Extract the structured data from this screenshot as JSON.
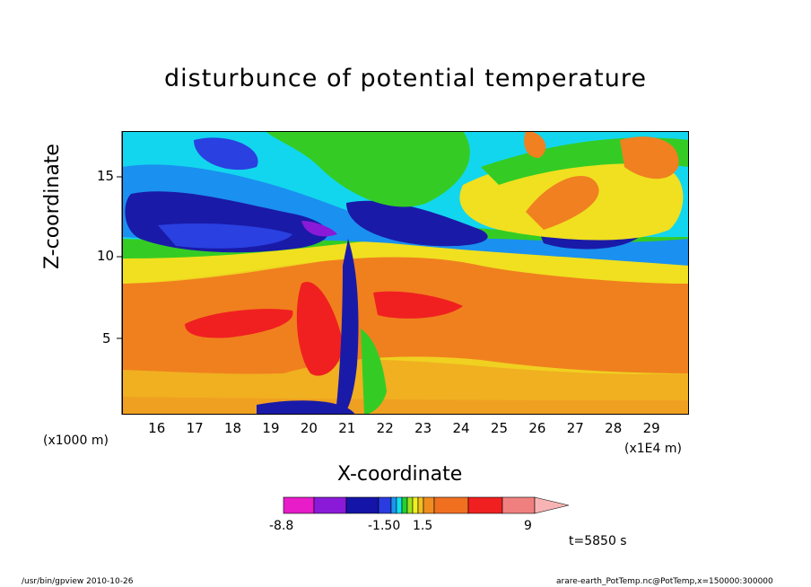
{
  "chart_data": {
    "type": "heatmap",
    "title": "disturbunce of potential temperature",
    "xlabel": "X-coordinate",
    "ylabel": "Z-coordinate",
    "x_unit_left": "(x1000 m)",
    "x_unit_right": "(x1E4 m)",
    "x_ticks": [
      "16",
      "17",
      "18",
      "19",
      "20",
      "21",
      "22",
      "23",
      "24",
      "25",
      "26",
      "27",
      "28",
      "29"
    ],
    "y_ticks": [
      "5",
      "10",
      "15"
    ],
    "xlim": [
      15.1,
      30.0
    ],
    "ylim": [
      0.3,
      17.6
    ],
    "colorbar": {
      "labels": [
        "-8.8",
        "-1.50",
        "1.5",
        "9"
      ],
      "colors": [
        "#e81cc8",
        "#8a1ad8",
        "#1414a8",
        "#2a3ce0",
        "#1a96f0",
        "#10e0f0",
        "#20d230",
        "#a0e020",
        "#f0f020",
        "#f0c020",
        "#f08c20",
        "#f07020",
        "#f02020",
        "#f08080",
        "#f8b4b4"
      ]
    },
    "time_label": "t=5850 s",
    "footer_left": "/usr/bin/gpview   2010-10-26",
    "footer_right": "arare-earth_PotTemp.nc@PotTemp,x=150000:300000"
  }
}
